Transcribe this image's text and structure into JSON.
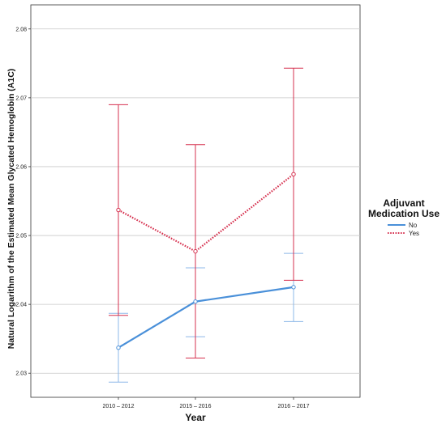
{
  "chart_data": {
    "type": "line",
    "title": "",
    "xlabel": "Year",
    "ylabel": "Natural Logarithm of the Estimated Mean Glycated Hemoglobin (A1C)",
    "categories": [
      "2010 – 2012",
      "2015 – 2016",
      "2016 – 2017"
    ],
    "ylim": [
      2.0265,
      2.0835
    ],
    "yticks": [
      "2.03",
      "2.04",
      "2.05",
      "2.06",
      "2.07",
      "2.08"
    ],
    "grid": "horizontal",
    "legend": {
      "title_line1": "Adjuvant",
      "title_line2": "Medication Use",
      "placement": "right"
    },
    "series": [
      {
        "name": "No",
        "color": "#4a90d9",
        "line_style": "solid",
        "values": [
          2.0337,
          2.0404,
          2.0425
        ],
        "error_low": [
          2.0287,
          2.0353,
          2.0375
        ],
        "error_high": [
          2.0387,
          2.0453,
          2.0474
        ]
      },
      {
        "name": "Yes",
        "color": "#d6314f",
        "line_style": "dotted",
        "values": [
          2.0537,
          2.0477,
          2.0589
        ],
        "error_low": [
          2.0384,
          2.0322,
          2.0435
        ],
        "error_high": [
          2.069,
          2.0632,
          2.0743
        ]
      }
    ]
  }
}
